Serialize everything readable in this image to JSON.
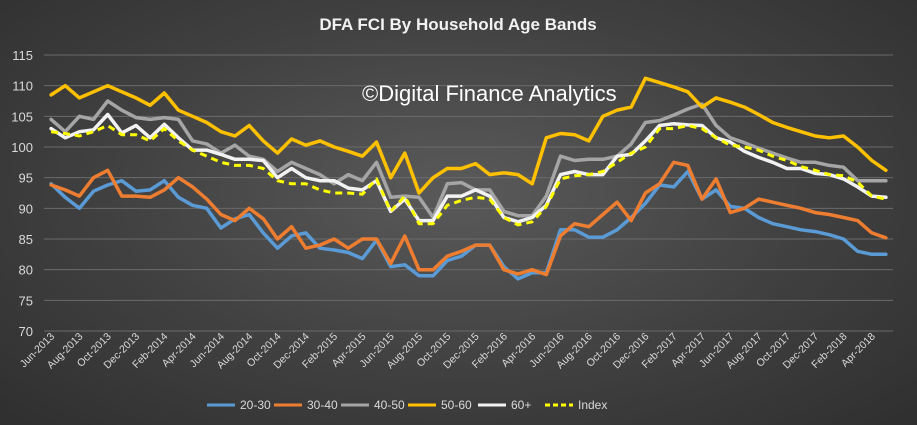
{
  "chart_data": {
    "type": "line",
    "title": "DFA FCI By Household Age Bands",
    "watermark": "©Digital Finance Analytics",
    "xlabel": "",
    "ylabel": "",
    "ylim": [
      70,
      115
    ],
    "yticks": [
      70,
      75,
      80,
      85,
      90,
      95,
      100,
      105,
      110,
      115
    ],
    "grid": true,
    "legend_position": "bottom",
    "x": [
      "Jun-2013",
      "Jul-2013",
      "Aug-2013",
      "Sep-2013",
      "Oct-2013",
      "Nov-2013",
      "Dec-2013",
      "Jan-2014",
      "Feb-2014",
      "Mar-2014",
      "Apr-2014",
      "May-2014",
      "Jun-2014",
      "Jul-2014",
      "Aug-2014",
      "Sep-2014",
      "Oct-2014",
      "Nov-2014",
      "Dec-2014",
      "Jan-2015",
      "Feb-2015",
      "Mar-2015",
      "Apr-2015",
      "May-2015",
      "Jun-2015",
      "Jul-2015",
      "Aug-2015",
      "Sep-2015",
      "Oct-2015",
      "Nov-2015",
      "Dec-2015",
      "Jan-2016",
      "Feb-2016",
      "Mar-2016",
      "Apr-2016",
      "May-2016",
      "Jun-2016",
      "Jul-2016",
      "Aug-2016",
      "Sep-2016",
      "Oct-2016",
      "Nov-2016",
      "Dec-2016",
      "Jan-2017",
      "Feb-2017",
      "Mar-2017",
      "Apr-2017",
      "May-2017",
      "Jun-2017",
      "Jul-2017",
      "Aug-2017",
      "Sep-2017",
      "Oct-2017",
      "Nov-2017",
      "Dec-2017",
      "Jan-2018",
      "Feb-2018",
      "Mar-2018",
      "Apr-2018",
      "May-2018"
    ],
    "x_tick_labels": [
      "Jun-2013",
      "Aug-2013",
      "Oct-2013",
      "Dec-2013",
      "Feb-2014",
      "Apr-2014",
      "Jun-2014",
      "Aug-2014",
      "Oct-2014",
      "Dec-2014",
      "Feb-2015",
      "Apr-2015",
      "Jun-2015",
      "Aug-2015",
      "Oct-2015",
      "Dec-2015",
      "Feb-2016",
      "Apr-2016",
      "Jun-2016",
      "Aug-2016",
      "Oct-2016",
      "Dec-2016",
      "Feb-2017",
      "Apr-2017",
      "Jun-2017",
      "Aug-2017",
      "Oct-2017",
      "Dec-2017",
      "Feb-2018",
      "Apr-2018"
    ],
    "series": [
      {
        "name": "20-30",
        "color": "#5b9bd5",
        "dashed": false,
        "values": [
          94,
          91.8,
          90,
          92.8,
          93.8,
          94.5,
          92.8,
          93,
          94.5,
          91.8,
          90.5,
          90,
          86.8,
          88.3,
          89,
          86,
          83.5,
          85.5,
          86,
          83.5,
          83.2,
          82.8,
          81.8,
          84.8,
          80.5,
          80.8,
          79,
          79,
          81.5,
          82.2,
          84,
          84,
          80.5,
          78.5,
          79.5,
          79.5,
          86.5,
          86.5,
          85.3,
          85.3,
          86.5,
          88.5,
          90.8,
          93.8,
          93.5,
          96,
          91.5,
          93,
          90.3,
          90,
          88.5,
          87.5,
          87,
          86.5,
          86.2,
          85.7,
          85,
          83,
          82.5,
          82.5
        ]
      },
      {
        "name": "30-40",
        "color": "#ed7d31",
        "dashed": false,
        "values": [
          93.8,
          93,
          92,
          95,
          96.2,
          92,
          92,
          91.8,
          93,
          95,
          93.5,
          91.5,
          89,
          88,
          90,
          88.3,
          85,
          87,
          83.5,
          84,
          85,
          83.5,
          85,
          85,
          81,
          85.5,
          80,
          80,
          82.2,
          83,
          84,
          84,
          80,
          79.3,
          80,
          79.2,
          85.5,
          87.5,
          87,
          89,
          91,
          88,
          92.5,
          94,
          97.5,
          97,
          91.5,
          94.8,
          89.3,
          90,
          91.5,
          91,
          90.5,
          90,
          89.3,
          89,
          88.5,
          88,
          86,
          85.2
        ]
      },
      {
        "name": "40-50",
        "color": "#a5a5a5",
        "dashed": false,
        "values": [
          104.5,
          102.5,
          105,
          104.5,
          107.5,
          106,
          104.8,
          104.5,
          104.8,
          104.5,
          101,
          100.5,
          99,
          100.3,
          98.5,
          98,
          96,
          97.5,
          96.5,
          95.5,
          94,
          95.5,
          94.5,
          97.5,
          91.8,
          92,
          91.8,
          88.5,
          94,
          94.2,
          93,
          93,
          89.5,
          88.8,
          88.8,
          92,
          98.5,
          97.8,
          98,
          98,
          98.5,
          100.5,
          104,
          104.3,
          105.2,
          106.2,
          107,
          103.5,
          101.5,
          100.7,
          99.8,
          99,
          98.2,
          97.5,
          97.5,
          97,
          96.7,
          94.5,
          94.5,
          94.5
        ]
      },
      {
        "name": "50-60",
        "color": "#ffc000",
        "dashed": false,
        "values": [
          108.5,
          110,
          108,
          109,
          110,
          109,
          108,
          106.8,
          108.8,
          106,
          105,
          104,
          102.5,
          101.8,
          103.5,
          101,
          99,
          101.3,
          100.3,
          101,
          100,
          99.3,
          98.5,
          100.8,
          95,
          99,
          92.5,
          95,
          96.5,
          96.5,
          97.3,
          95.5,
          95.8,
          95.5,
          94,
          101.5,
          102.2,
          102,
          101,
          105,
          106,
          106.5,
          111.2,
          110.5,
          109.8,
          109,
          106.5,
          108,
          107.3,
          106.5,
          105.3,
          104,
          103.2,
          102.5,
          101.8,
          101.5,
          101.8,
          100,
          97.8,
          96.2
        ]
      },
      {
        "name": "60+",
        "color": "#f2f2f2",
        "dashed": false,
        "values": [
          103,
          101.5,
          102.5,
          102.8,
          105.3,
          102.3,
          103.5,
          101.5,
          103.7,
          101.5,
          99.5,
          99.5,
          98.8,
          98,
          98,
          97.8,
          95,
          96.5,
          95,
          94.5,
          94.5,
          93.3,
          93,
          94.5,
          89.5,
          91.5,
          88,
          88,
          92,
          92,
          93,
          92,
          88.5,
          87.8,
          88.5,
          90.5,
          95.5,
          96,
          95.5,
          95.5,
          98.5,
          98.8,
          101,
          103.5,
          103.8,
          103.6,
          103.5,
          101.5,
          100.8,
          99.3,
          98.3,
          97.5,
          96.5,
          96.5,
          95.7,
          95.5,
          94.8,
          93.5,
          92,
          91.8
        ]
      },
      {
        "name": "Index",
        "color": "#ffff00",
        "dashed": true,
        "values": [
          102.5,
          102.2,
          101.8,
          102.5,
          103.5,
          102,
          102,
          101,
          103,
          101,
          99.5,
          98.5,
          97.5,
          97,
          97,
          96.5,
          94.5,
          94,
          94,
          93,
          92.5,
          92.5,
          92.3,
          94.8,
          89.5,
          92,
          87.5,
          87.5,
          90.5,
          91.3,
          91.8,
          91.5,
          88.5,
          87.3,
          87.8,
          90.3,
          94.8,
          95.3,
          95.5,
          96,
          97.5,
          99,
          100,
          103,
          103,
          103.5,
          103,
          101.5,
          100.3,
          100,
          99.5,
          98.5,
          97.8,
          96.8,
          96.2,
          95.5,
          95.3,
          94.3,
          92,
          91.5
        ]
      }
    ]
  }
}
